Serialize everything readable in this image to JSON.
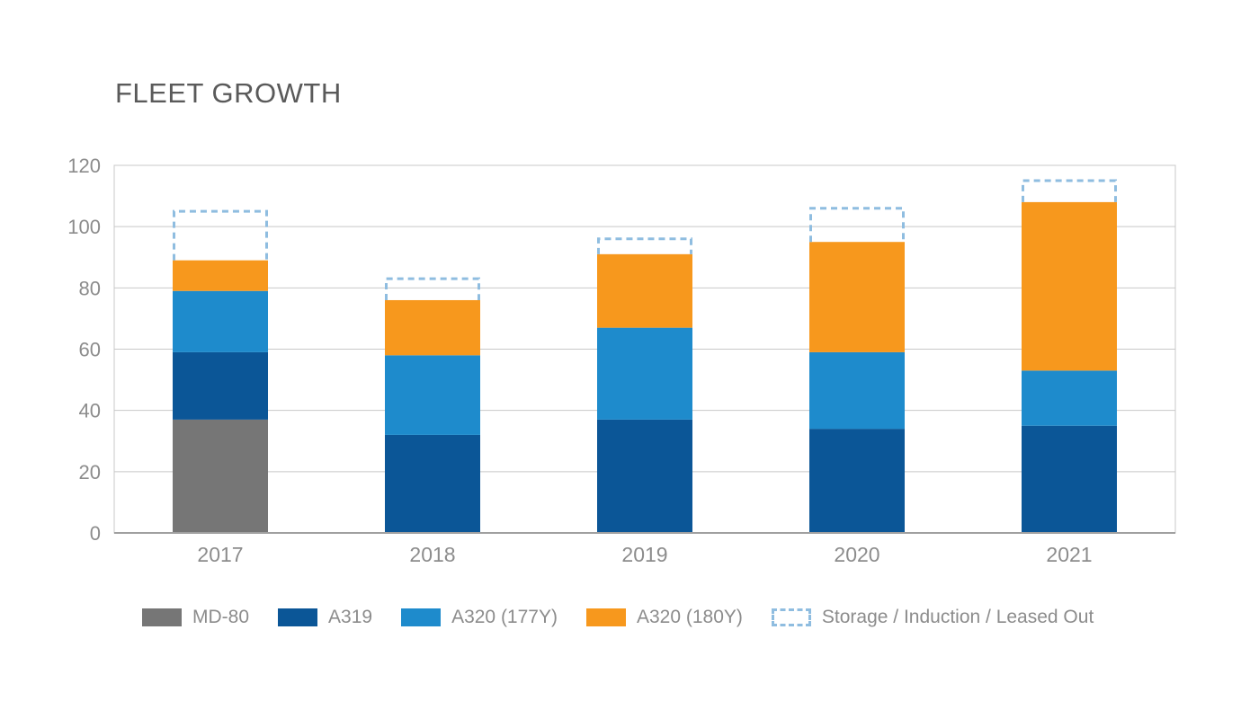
{
  "chart_data": {
    "type": "bar",
    "stacked": true,
    "title": "FLEET GROWTH",
    "xlabel": "",
    "ylabel": "",
    "ylim": [
      0,
      120
    ],
    "yticks": [
      0,
      20,
      40,
      60,
      80,
      100,
      120
    ],
    "grid": true,
    "categories": [
      "2017",
      "2018",
      "2019",
      "2020",
      "2021"
    ],
    "series": [
      {
        "name": "MD-80",
        "color": "#767676",
        "values": [
          37,
          0,
          0,
          0,
          0
        ]
      },
      {
        "name": "A319",
        "color": "#0b5697",
        "values": [
          22,
          32,
          37,
          34,
          35
        ]
      },
      {
        "name": "A320 (177Y)",
        "color": "#1e8bcc",
        "values": [
          20,
          26,
          30,
          25,
          18
        ]
      },
      {
        "name": "A320 (180Y)",
        "color": "#f7981d",
        "values": [
          10,
          18,
          24,
          36,
          55
        ]
      }
    ],
    "outline_series": {
      "name": "Storage / Induction / Leased Out",
      "color": "#8fbde0",
      "values": [
        16,
        7,
        5,
        11,
        7
      ]
    },
    "legend_position": "bottom"
  }
}
